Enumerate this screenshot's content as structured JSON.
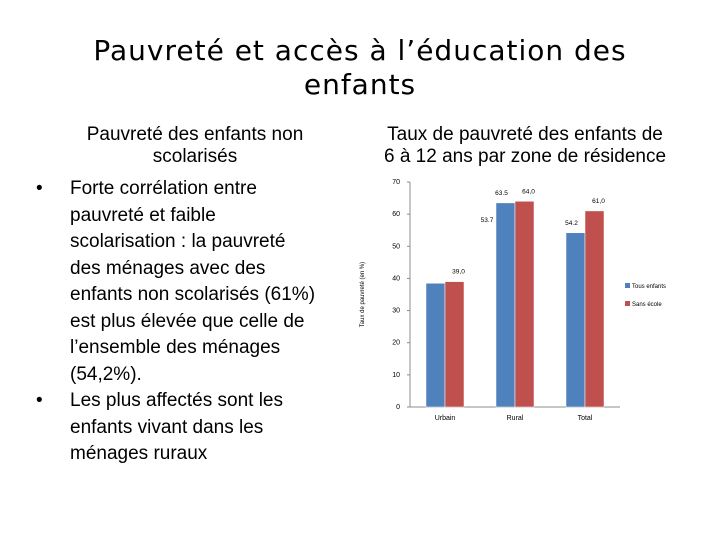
{
  "slide": {
    "title_line1": "Pauvreté et accès à l’éducation des",
    "title_line2": "enfants"
  },
  "left": {
    "heading_line1": "Pauvreté des enfants non",
    "heading_line2": "scolarisés",
    "bullets": [
      {
        "lines": [
          "Forte corrélation entre",
          "pauvreté et  faible",
          "scolarisation : la pauvreté",
          "des ménages avec des",
          "enfants non scolarisés (61%)",
          "est plus élevée que celle de",
          "l’ensemble des ménages",
          "(54,2%)."
        ]
      },
      {
        "lines": [
          "Les plus affectés sont les",
          "enfants vivant dans les",
          "ménages ruraux"
        ]
      }
    ],
    "bullet_symbol": "•"
  },
  "right": {
    "heading_line1": "Taux de pauvreté des enfants de",
    "heading_line2": "6 à 12 ans par zone de résidence"
  },
  "chart_data": {
    "type": "bar",
    "title": "",
    "xlabel": "",
    "ylabel": "Taux de pauvreté (en %)",
    "categories": [
      "Urbain",
      "Rural",
      "Total"
    ],
    "ylim": [
      0,
      70
    ],
    "yticks": [
      0,
      10,
      20,
      30,
      40,
      50,
      60,
      70
    ],
    "grid": false,
    "legend_position": "right",
    "series": [
      {
        "name": "Tous enfants",
        "color": "#4f81bd",
        "values": [
          38.5,
          63.5,
          54.2
        ],
        "labels": [
          "",
          "63.5",
          "54.2"
        ]
      },
      {
        "name": "Sans école",
        "color": "#c0504d",
        "values": [
          39.0,
          64.0,
          61.0
        ],
        "labels": [
          "39,0",
          "64,0",
          "61,0"
        ]
      }
    ],
    "extra_labels": [
      "53.7"
    ]
  }
}
